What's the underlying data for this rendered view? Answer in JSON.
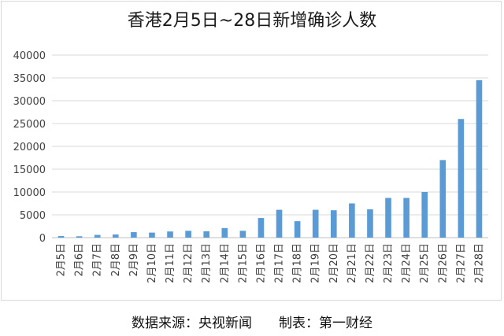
{
  "chart_data": {
    "type": "bar",
    "title": "香港2月5日~28日新增确诊人数",
    "xlabel": "",
    "ylabel": "",
    "ylim": [
      0,
      40000
    ],
    "yticks": [
      0,
      5000,
      10000,
      15000,
      20000,
      25000,
      30000,
      35000,
      40000
    ],
    "grid": true,
    "legend": "none",
    "bar_color": "#5b9bd5",
    "categories": [
      "2月5日",
      "2月6日",
      "2月7日",
      "2月8日",
      "2月9日",
      "2月10日",
      "2月11日",
      "2月12日",
      "2月13日",
      "2月14日",
      "2月15日",
      "2月16日",
      "2月17日",
      "2月18日",
      "2月19日",
      "2月20日",
      "2月21日",
      "2月22日",
      "2月23日",
      "2月24日",
      "2月25日",
      "2月26日",
      "2月27日",
      "2月28日"
    ],
    "values": [
      351,
      300,
      600,
      700,
      1200,
      1100,
      1350,
      1500,
      1400,
      2100,
      1500,
      4300,
      6100,
      3600,
      6100,
      6000,
      7500,
      6200,
      8700,
      8700,
      10000,
      17000,
      26000,
      34500
    ]
  },
  "footer": "数据来源：央视新闻　　制表：第一财经"
}
